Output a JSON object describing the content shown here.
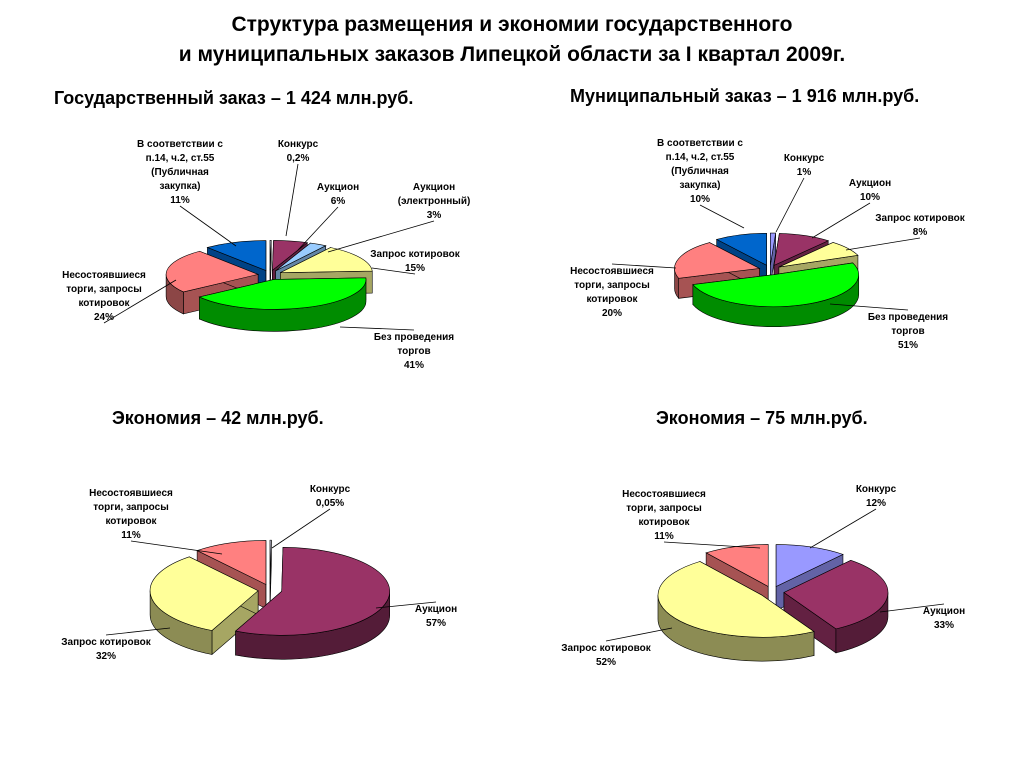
{
  "page": {
    "title_line1": "Структура  размещения и экономии государственного",
    "title_line2": "и муниципальных заказов Липецкой области за I квартал 2009г."
  },
  "headings": {
    "state_order": "Государственный заказ – 1 424 млн.руб.",
    "municipal_order": "Муниципальный заказ – 1 916 млн.руб.",
    "state_savings": "Экономия  – 42 млн.руб.",
    "municipal_savings": "Экономия  – 75 млн.руб."
  },
  "chart_data": [
    {
      "type": "pie",
      "title": "Государственный заказ – 1 424 млн.руб.",
      "slices": [
        {
          "label": [
            "Конкурс",
            "0,2%"
          ],
          "value": 0.2,
          "color": "#e8e8ff"
        },
        {
          "label": [
            "Аукцион",
            "6%"
          ],
          "value": 6,
          "color": "#993366"
        },
        {
          "label": [
            "Аукцион",
            "(электронный)",
            "3%"
          ],
          "value": 3,
          "color": "#99ccff"
        },
        {
          "label": [
            "Запрос котировок",
            "15%"
          ],
          "value": 15,
          "color": "#ffff99"
        },
        {
          "label": [
            "Без проведения",
            "торгов",
            "41%"
          ],
          "value": 41,
          "color": "#00ff00"
        },
        {
          "label": [
            "Несостоявшиеся",
            "торги, запросы",
            "котировок",
            "24%"
          ],
          "value": 24,
          "color": "#ff8080"
        },
        {
          "label": [
            "В соответствии с",
            "п.14, ч.2, ст.55",
            "(Публичная",
            "закупка)",
            "11%"
          ],
          "value": 11,
          "color": "#0066cc"
        }
      ]
    },
    {
      "type": "pie",
      "title": "Муниципальный заказ – 1 916 млн.руб.",
      "slices": [
        {
          "label": [
            "Конкурс",
            "1%"
          ],
          "value": 1,
          "color": "#9999ff"
        },
        {
          "label": [
            "Аукцион",
            "10%"
          ],
          "value": 10,
          "color": "#993366"
        },
        {
          "label": [
            "Запрос котировок",
            "8%"
          ],
          "value": 8,
          "color": "#ffff99"
        },
        {
          "label": [
            "Без проведения",
            "торгов",
            "51%"
          ],
          "value": 51,
          "color": "#00ff00"
        },
        {
          "label": [
            "Несостоявшиеся",
            "торги, запросы",
            "котировок",
            "20%"
          ],
          "value": 20,
          "color": "#ff8080"
        },
        {
          "label": [
            "В соответствии с",
            "п.14, ч.2, ст.55",
            "(Публичная",
            "закупка)",
            "10%"
          ],
          "value": 10,
          "color": "#0066cc"
        }
      ]
    },
    {
      "type": "pie",
      "title": "Экономия  – 42 млн.руб.",
      "slices": [
        {
          "label": [
            "Конкурс",
            "0,05%"
          ],
          "value": 0.05,
          "color": "#e8e8ff"
        },
        {
          "label": [
            "Аукцион",
            "57%"
          ],
          "value": 57,
          "color": "#993366"
        },
        {
          "label": [
            "Запрос котировок",
            "32%"
          ],
          "value": 32,
          "color": "#ffff99"
        },
        {
          "label": [
            "Несостоявшиеся",
            "торги, запросы",
            "котировок",
            "11%"
          ],
          "value": 11,
          "color": "#ff8080"
        }
      ]
    },
    {
      "type": "pie",
      "title": "Экономия  – 75 млн.руб.",
      "slices": [
        {
          "label": [
            "Конкурс",
            "12%"
          ],
          "value": 12,
          "color": "#9999ff"
        },
        {
          "label": [
            "Аукцион",
            "33%"
          ],
          "value": 33,
          "color": "#993366"
        },
        {
          "label": [
            "Запрос котировок",
            "52%"
          ],
          "value": 52,
          "color": "#ffff99"
        },
        {
          "label": [
            "Несостоявшиеся",
            "торги, запросы",
            "котировок",
            "11%"
          ],
          "value": 11,
          "color": "#ff8080"
        }
      ]
    }
  ]
}
